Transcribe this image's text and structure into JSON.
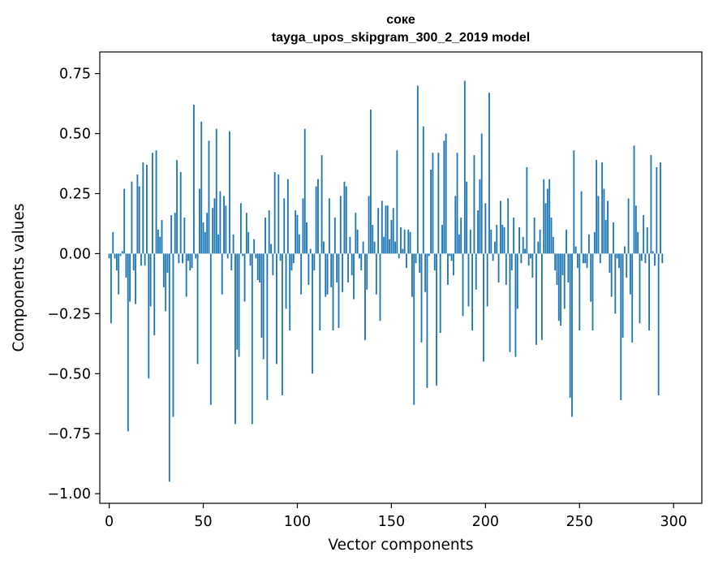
{
  "chart_data": {
    "type": "bar",
    "title": "соке",
    "subtitle": "tayga_upos_skipgram_300_2_2019 model",
    "xlabel": "Vector components",
    "ylabel": "Components values",
    "xlim": [
      -5,
      315
    ],
    "ylim": [
      -1.04,
      0.84
    ],
    "x_ticks": [
      0,
      50,
      100,
      150,
      200,
      250,
      300
    ],
    "y_ticks": [
      -1.0,
      -0.75,
      -0.5,
      -0.25,
      0.0,
      0.25,
      0.5,
      0.75
    ],
    "y_tick_labels": [
      "−1.00",
      "−0.75",
      "−0.50",
      "−0.25",
      "0.00",
      "0.25",
      "0.50",
      "0.75"
    ],
    "x_tick_labels": [
      "0",
      "50",
      "100",
      "150",
      "200",
      "250",
      "300"
    ],
    "bar_color": "#1f77b4",
    "grid": false,
    "values": [
      -0.02,
      -0.29,
      0.09,
      -0.02,
      -0.07,
      -0.17,
      -0.01,
      0.01,
      0.27,
      -0.1,
      -0.74,
      -0.2,
      0.3,
      -0.07,
      -0.21,
      0.33,
      0.28,
      -0.05,
      0.38,
      -0.05,
      0.37,
      -0.52,
      -0.22,
      0.42,
      -0.34,
      0.43,
      0.1,
      0.07,
      0.14,
      -0.14,
      -0.24,
      -0.08,
      -0.95,
      0.16,
      -0.68,
      0.17,
      0.39,
      -0.04,
      0.34,
      -0.04,
      0.15,
      -0.18,
      -0.03,
      -0.07,
      -0.06,
      0.62,
      -0.02,
      -0.46,
      0.27,
      0.55,
      0.13,
      0.09,
      0.17,
      0.47,
      -0.63,
      0.19,
      0.23,
      0.52,
      0.08,
      0.26,
      -0.17,
      0.24,
      0.2,
      -0.02,
      0.51,
      -0.07,
      0.08,
      -0.71,
      -0.4,
      -0.43,
      0.21,
      -0.01,
      -0.2,
      0.17,
      0.09,
      -0.05,
      -0.71,
      0.06,
      -0.02,
      -0.11,
      -0.12,
      -0.35,
      -0.44,
      0.15,
      -0.61,
      0.18,
      0.04,
      -0.09,
      0.34,
      -0.46,
      0.33,
      -0.03,
      -0.59,
      0.23,
      -0.23,
      0.31,
      -0.32,
      -0.07,
      -0.04,
      0.18,
      0.16,
      0.08,
      -0.17,
      0.23,
      0.52,
      0.13,
      -0.13,
      0.02,
      -0.5,
      -0.07,
      0.28,
      0.31,
      -0.32,
      0.41,
      0.05,
      -0.18,
      -0.17,
      0.23,
      -0.14,
      -0.32,
      0.15,
      -0.12,
      -0.31,
      0.24,
      -0.16,
      0.3,
      0.28,
      -0.12,
      0.07,
      -0.09,
      -0.19,
      0.17,
      0.1,
      -0.02,
      -0.07,
      0.05,
      -0.36,
      -0.15,
      0.24,
      0.6,
      0.12,
      0.05,
      -0.17,
      0.19,
      -0.28,
      0.22,
      0.07,
      0.2,
      0.2,
      0.06,
      0.14,
      0.19,
      0.05,
      0.43,
      -0.02,
      0.11,
      0.02,
      0.1,
      -0.06,
      0.1,
      0.09,
      -0.18,
      -0.63,
      -0.04,
      0.7,
      -0.08,
      -0.37,
      0.53,
      -0.16,
      -0.56,
      -0.01,
      0.35,
      0.42,
      -0.07,
      -0.55,
      0.42,
      -0.33,
      0.12,
      0.47,
      0.5,
      -0.13,
      -0.01,
      -0.03,
      -0.09,
      0.24,
      0.42,
      0.08,
      0.15,
      -0.26,
      0.72,
      0.3,
      -0.22,
      0.1,
      -0.32,
      0.41,
      -0.15,
      0.18,
      0.31,
      0.5,
      -0.45,
      0.21,
      -0.22,
      0.67,
      0.1,
      -0.03,
      0.05,
      0.12,
      -0.12,
      0.22,
      0.12,
      0.11,
      -0.13,
      0.23,
      -0.41,
      -0.07,
      0.15,
      -0.43,
      -0.23,
      0.11,
      -0.04,
      0.07,
      0.02,
      0.36,
      -0.05,
      -0.02,
      -0.1,
      0.15,
      -0.38,
      0.05,
      0.1,
      -0.36,
      0.31,
      0.21,
      0.27,
      0.31,
      0.15,
      0.07,
      -0.07,
      -0.13,
      -0.28,
      -0.3,
      -0.09,
      -0.23,
      0.1,
      -0.12,
      -0.6,
      -0.68,
      0.43,
      0.03,
      -0.06,
      -0.32,
      0.26,
      -0.04,
      -0.04,
      -0.06,
      0.08,
      -0.2,
      -0.32,
      0.09,
      0.39,
      0.24,
      -0.04,
      0.38,
      0.27,
      0.14,
      0.22,
      -0.08,
      -0.18,
      0.13,
      -0.25,
      -0.02,
      -0.06,
      -0.61,
      -0.35,
      0.03,
      -0.1,
      0.23,
      -0.17,
      -0.37,
      0.45,
      0.2,
      0.09,
      -0.29,
      -0.03,
      0.16,
      -0.04,
      0.11,
      -0.32,
      0.41,
      0.01,
      -0.05,
      0.36,
      -0.59,
      0.38,
      -0.04
    ]
  }
}
